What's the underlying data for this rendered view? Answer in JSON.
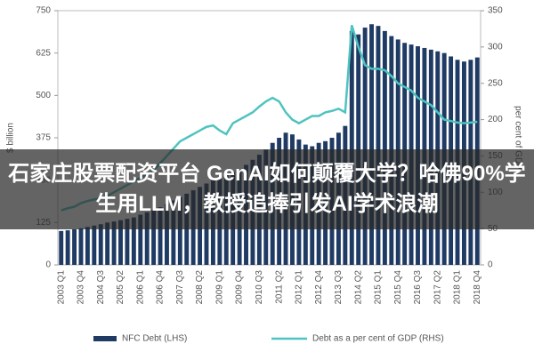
{
  "chart_data": {
    "type": "bar_line",
    "title": "石家庄股票配资平台 GenAI如何颠覆大学？哈佛90%学生用LLM，教授追捧引发AI学术浪潮",
    "ylabel": "$ billion",
    "y2label": "per cent of GDP",
    "categories": [
      "2003 Q1",
      null,
      null,
      "2003 Q4",
      null,
      null,
      "2004 Q3",
      null,
      null,
      "2005 Q2",
      null,
      null,
      "2006 Q1",
      null,
      null,
      "2006 Q4",
      null,
      null,
      "2007 Q3",
      null,
      null,
      "2008 Q2",
      null,
      null,
      "2009 Q1",
      null,
      null,
      "2009 Q4",
      null,
      null,
      "2010 Q3",
      null,
      null,
      "2011 Q2",
      null,
      null,
      "2012 Q1",
      null,
      null,
      "2012 Q4",
      null,
      null,
      "2013 Q3",
      null,
      null,
      "2014 Q2",
      null,
      null,
      "2015 Q1",
      null,
      null,
      "2015 Q4",
      null,
      null,
      "2016 Q3",
      null,
      null,
      "2017 Q2",
      null,
      null,
      "2018 Q1",
      null,
      null,
      "2018 Q4"
    ],
    "series": [
      {
        "name": "NFC Debt (LHS)",
        "color": "#1f3a63",
        "type": "bar",
        "values": [
          100,
          102,
          105,
          108,
          112,
          116,
          120,
          125,
          128,
          132,
          136,
          140,
          148,
          155,
          162,
          170,
          180,
          190,
          200,
          210,
          220,
          230,
          240,
          250,
          258,
          266,
          274,
          282,
          295,
          310,
          325,
          340,
          360,
          375,
          390,
          385,
          370,
          355,
          350,
          360,
          365,
          375,
          390,
          410,
          690,
          680,
          700,
          710,
          705,
          690,
          675,
          665,
          655,
          650,
          645,
          640,
          635,
          630,
          625,
          615,
          605,
          600,
          605,
          612
        ]
      },
      {
        "name": "Debt as a per cent of GDP (RHS)",
        "color": "#4fc3c0",
        "type": "line",
        "axis": "y2",
        "values": [
          75,
          78,
          80,
          85,
          88,
          90,
          92,
          95,
          100,
          105,
          110,
          115,
          120,
          125,
          130,
          140,
          150,
          160,
          170,
          175,
          180,
          185,
          190,
          192,
          185,
          180,
          195,
          200,
          205,
          210,
          218,
          225,
          230,
          225,
          210,
          200,
          195,
          200,
          205,
          205,
          210,
          212,
          215,
          210,
          330,
          300,
          275,
          270,
          270,
          268,
          260,
          250,
          245,
          240,
          230,
          225,
          220,
          210,
          200,
          198,
          196,
          195,
          196,
          197
        ]
      }
    ],
    "ylim": [
      0,
      750
    ],
    "yticks": [
      0,
      125,
      250,
      375,
      500,
      625,
      750
    ],
    "y2lim": [
      0,
      350
    ],
    "y2ticks": [
      0,
      50,
      100,
      150,
      200,
      250,
      300,
      350
    ]
  }
}
